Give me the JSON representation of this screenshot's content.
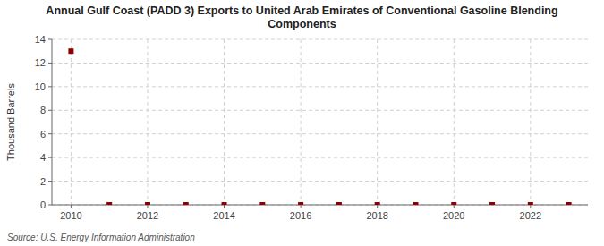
{
  "chart_data": {
    "type": "scatter",
    "title": "Annual Gulf Coast (PADD 3) Exports to United Arab Emirates of Conventional Gasoline Blending\nComponents",
    "y_label": "Thousand Barrels",
    "source": "Source: U.S. Energy Information Administration",
    "x": [
      2010,
      2011,
      2012,
      2013,
      2014,
      2015,
      2016,
      2017,
      2018,
      2019,
      2020,
      2021,
      2022,
      2023
    ],
    "values": [
      13.0,
      0.0,
      0.0,
      0.0,
      0.0,
      0.0,
      0.0,
      0.0,
      0.0,
      0.0,
      0.0,
      0.0,
      0.0,
      0.0
    ],
    "color": "#8b0000",
    "marker": "square",
    "xlim": [
      2009.5,
      2023.5
    ],
    "ylim": [
      0,
      14
    ],
    "xticks": [
      2010,
      2012,
      2014,
      2016,
      2018,
      2020,
      2022
    ],
    "yticks": [
      0,
      2,
      4,
      6,
      8,
      10,
      12,
      14
    ],
    "grid": true
  }
}
